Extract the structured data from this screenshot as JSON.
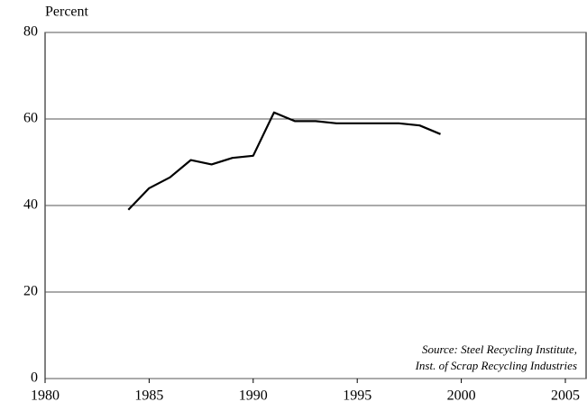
{
  "chart_data": {
    "type": "line",
    "y_label": "Percent",
    "x": [
      1984,
      1985,
      1986,
      1987,
      1988,
      1989,
      1990,
      1991,
      1992,
      1993,
      1994,
      1995,
      1996,
      1997,
      1998,
      1999
    ],
    "series": [
      {
        "color": "#000000",
        "values": [
          39,
          44,
          46.5,
          50.5,
          49.5,
          51,
          51.5,
          61.5,
          59.5,
          59.5,
          59,
          59,
          59,
          59,
          58.5,
          56.5
        ]
      }
    ],
    "xlim": [
      1980,
      2005
    ],
    "xticks": [
      1980,
      1985,
      1990,
      1995,
      2000,
      2005
    ],
    "ylim": [
      0,
      80
    ],
    "yticks": [
      0,
      20,
      40,
      60,
      80
    ],
    "grid": true,
    "annotations": [
      "Source: Steel Recycling Institute,",
      "Inst. of Scrap Recycling Industries"
    ]
  }
}
